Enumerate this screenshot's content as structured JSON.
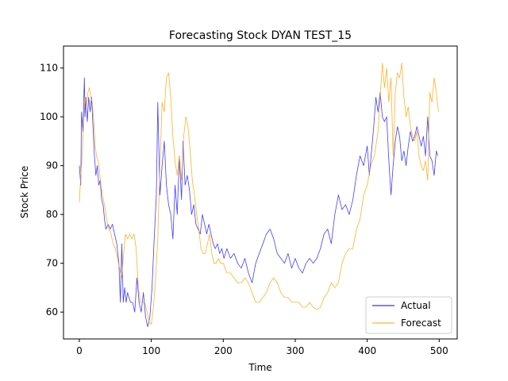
{
  "chart_data": {
    "type": "line",
    "title": "Forecasting Stock DYAN TEST_15",
    "xlabel": "Time",
    "ylabel": "Stock Price",
    "xlim": [
      -22,
      525
    ],
    "ylim": [
      54.5,
      114.5
    ],
    "xticks": [
      0,
      100,
      200,
      300,
      400,
      500
    ],
    "yticks": [
      60,
      70,
      80,
      90,
      100,
      110
    ],
    "grid": false,
    "legend_position": "lower-right",
    "series": [
      {
        "name": "Actual",
        "color": "#0000ff",
        "points": [
          [
            0,
            90
          ],
          [
            2,
            86
          ],
          [
            3,
            101
          ],
          [
            5,
            97
          ],
          [
            7,
            108
          ],
          [
            8,
            100
          ],
          [
            9,
            104
          ],
          [
            11,
            99
          ],
          [
            13,
            104
          ],
          [
            15,
            101
          ],
          [
            17,
            104
          ],
          [
            19,
            98
          ],
          [
            21,
            92
          ],
          [
            23,
            88
          ],
          [
            25,
            90
          ],
          [
            27,
            86
          ],
          [
            29,
            87
          ],
          [
            31,
            83
          ],
          [
            33,
            82
          ],
          [
            35,
            79
          ],
          [
            37,
            77
          ],
          [
            40,
            78
          ],
          [
            43,
            77
          ],
          [
            46,
            78
          ],
          [
            49,
            76
          ],
          [
            52,
            74
          ],
          [
            55,
            70
          ],
          [
            57,
            62
          ],
          [
            59,
            74
          ],
          [
            61,
            62
          ],
          [
            63,
            65
          ],
          [
            65,
            62
          ],
          [
            67,
            64
          ],
          [
            69,
            63
          ],
          [
            71,
            62
          ],
          [
            74,
            62
          ],
          [
            77,
            60
          ],
          [
            80,
            67
          ],
          [
            83,
            62
          ],
          [
            86,
            60
          ],
          [
            89,
            64
          ],
          [
            92,
            59
          ],
          [
            95,
            57
          ],
          [
            98,
            59
          ],
          [
            101,
            65
          ],
          [
            104,
            75
          ],
          [
            107,
            84
          ],
          [
            109,
            103
          ],
          [
            112,
            84
          ],
          [
            115,
            90
          ],
          [
            118,
            95
          ],
          [
            121,
            86
          ],
          [
            124,
            82
          ],
          [
            127,
            80
          ],
          [
            130,
            75
          ],
          [
            133,
            86
          ],
          [
            136,
            80
          ],
          [
            139,
            92
          ],
          [
            142,
            83
          ],
          [
            144,
            95
          ],
          [
            147,
            86
          ],
          [
            150,
            88
          ],
          [
            153,
            85
          ],
          [
            156,
            80
          ],
          [
            159,
            82
          ],
          [
            162,
            78
          ],
          [
            165,
            77
          ],
          [
            168,
            76
          ],
          [
            171,
            80
          ],
          [
            174,
            78
          ],
          [
            177,
            76
          ],
          [
            180,
            78
          ],
          [
            183,
            76
          ],
          [
            186,
            74
          ],
          [
            189,
            73
          ],
          [
            192,
            74
          ],
          [
            195,
            72
          ],
          [
            198,
            73
          ],
          [
            201,
            71
          ],
          [
            205,
            73
          ],
          [
            210,
            71
          ],
          [
            215,
            72
          ],
          [
            220,
            70
          ],
          [
            225,
            69
          ],
          [
            230,
            71
          ],
          [
            235,
            68
          ],
          [
            240,
            66
          ],
          [
            245,
            70
          ],
          [
            250,
            72
          ],
          [
            255,
            74
          ],
          [
            260,
            76
          ],
          [
            265,
            77
          ],
          [
            270,
            75
          ],
          [
            275,
            72
          ],
          [
            280,
            71
          ],
          [
            285,
            70
          ],
          [
            290,
            72
          ],
          [
            295,
            69
          ],
          [
            300,
            71
          ],
          [
            305,
            69
          ],
          [
            310,
            68
          ],
          [
            315,
            70
          ],
          [
            320,
            71
          ],
          [
            325,
            70
          ],
          [
            330,
            71
          ],
          [
            335,
            73
          ],
          [
            340,
            76
          ],
          [
            345,
            77
          ],
          [
            350,
            74
          ],
          [
            355,
            80
          ],
          [
            360,
            84
          ],
          [
            365,
            81
          ],
          [
            370,
            82
          ],
          [
            375,
            80
          ],
          [
            380,
            83
          ],
          [
            385,
            88
          ],
          [
            390,
            92
          ],
          [
            395,
            90
          ],
          [
            400,
            94
          ],
          [
            403,
            88
          ],
          [
            406,
            93
          ],
          [
            409,
            98
          ],
          [
            412,
            104
          ],
          [
            415,
            101
          ],
          [
            418,
            105
          ],
          [
            421,
            100
          ],
          [
            424,
            99
          ],
          [
            427,
            100
          ],
          [
            430,
            91
          ],
          [
            433,
            84
          ],
          [
            436,
            90
          ],
          [
            439,
            95
          ],
          [
            442,
            98
          ],
          [
            445,
            96
          ],
          [
            448,
            91
          ],
          [
            451,
            93
          ],
          [
            454,
            90
          ],
          [
            457,
            94
          ],
          [
            460,
            97
          ],
          [
            463,
            95
          ],
          [
            466,
            96
          ],
          [
            469,
            98
          ],
          [
            472,
            96
          ],
          [
            475,
            94
          ],
          [
            478,
            96
          ],
          [
            481,
            92
          ],
          [
            484,
            100
          ],
          [
            487,
            92
          ],
          [
            490,
            91
          ],
          [
            493,
            88
          ],
          [
            496,
            93
          ],
          [
            498,
            92
          ]
        ]
      },
      {
        "name": "Forecast",
        "color": "#ffa500",
        "points": [
          [
            0,
            82.5
          ],
          [
            2,
            88
          ],
          [
            4,
            92
          ],
          [
            6,
            99
          ],
          [
            8,
            104
          ],
          [
            10,
            102
          ],
          [
            12,
            105
          ],
          [
            14,
            106
          ],
          [
            16,
            104
          ],
          [
            18,
            103
          ],
          [
            20,
            99
          ],
          [
            22,
            94
          ],
          [
            24,
            92
          ],
          [
            26,
            91
          ],
          [
            28,
            89
          ],
          [
            30,
            86
          ],
          [
            32,
            84
          ],
          [
            35,
            82
          ],
          [
            38,
            79
          ],
          [
            41,
            77
          ],
          [
            44,
            76
          ],
          [
            47,
            74
          ],
          [
            50,
            73
          ],
          [
            53,
            71
          ],
          [
            56,
            69
          ],
          [
            59,
            67
          ],
          [
            61,
            71
          ],
          [
            64,
            76
          ],
          [
            67,
            75
          ],
          [
            70,
            76
          ],
          [
            73,
            75
          ],
          [
            76,
            76
          ],
          [
            79,
            73
          ],
          [
            82,
            65
          ],
          [
            85,
            62
          ],
          [
            88,
            62
          ],
          [
            91,
            62
          ],
          [
            94,
            60
          ],
          [
            97,
            58
          ],
          [
            100,
            57.5
          ],
          [
            103,
            61
          ],
          [
            106,
            67
          ],
          [
            109,
            75
          ],
          [
            112,
            90
          ],
          [
            115,
            103
          ],
          [
            118,
            101
          ],
          [
            121,
            108
          ],
          [
            124,
            109
          ],
          [
            127,
            104
          ],
          [
            130,
            96
          ],
          [
            133,
            91
          ],
          [
            136,
            88
          ],
          [
            139,
            92
          ],
          [
            142,
            87
          ],
          [
            145,
            96
          ],
          [
            148,
            100
          ],
          [
            151,
            98
          ],
          [
            154,
            93
          ],
          [
            157,
            87
          ],
          [
            160,
            84
          ],
          [
            163,
            80
          ],
          [
            166,
            77
          ],
          [
            169,
            73
          ],
          [
            172,
            72
          ],
          [
            175,
            72
          ],
          [
            178,
            74
          ],
          [
            181,
            76
          ],
          [
            184,
            72
          ],
          [
            187,
            70
          ],
          [
            190,
            70
          ],
          [
            193,
            71
          ],
          [
            196,
            70
          ],
          [
            200,
            70
          ],
          [
            205,
            68
          ],
          [
            210,
            68
          ],
          [
            215,
            67
          ],
          [
            220,
            66
          ],
          [
            225,
            66
          ],
          [
            230,
            67
          ],
          [
            235,
            66
          ],
          [
            240,
            64
          ],
          [
            245,
            62
          ],
          [
            250,
            62
          ],
          [
            255,
            63
          ],
          [
            260,
            64
          ],
          [
            265,
            66
          ],
          [
            270,
            67
          ],
          [
            275,
            66
          ],
          [
            280,
            64
          ],
          [
            285,
            63
          ],
          [
            290,
            63
          ],
          [
            295,
            62
          ],
          [
            300,
            62
          ],
          [
            305,
            62
          ],
          [
            310,
            61
          ],
          [
            315,
            61
          ],
          [
            320,
            62
          ],
          [
            325,
            61
          ],
          [
            330,
            60.5
          ],
          [
            335,
            61
          ],
          [
            340,
            63
          ],
          [
            345,
            64
          ],
          [
            350,
            66
          ],
          [
            355,
            65
          ],
          [
            360,
            66
          ],
          [
            365,
            70
          ],
          [
            370,
            72
          ],
          [
            375,
            73
          ],
          [
            380,
            73
          ],
          [
            385,
            77
          ],
          [
            390,
            79
          ],
          [
            395,
            84
          ],
          [
            400,
            86
          ],
          [
            405,
            90
          ],
          [
            410,
            92
          ],
          [
            415,
            97
          ],
          [
            418,
            104
          ],
          [
            421,
            111
          ],
          [
            424,
            106
          ],
          [
            427,
            110
          ],
          [
            430,
            103
          ],
          [
            433,
            108
          ],
          [
            436,
            92
          ],
          [
            439,
            105
          ],
          [
            442,
            109
          ],
          [
            445,
            108
          ],
          [
            448,
            111
          ],
          [
            451,
            104
          ],
          [
            454,
            100
          ],
          [
            457,
            102
          ],
          [
            460,
            98
          ],
          [
            463,
            96
          ],
          [
            466,
            95
          ],
          [
            469,
            97
          ],
          [
            472,
            92
          ],
          [
            475,
            90
          ],
          [
            478,
            89
          ],
          [
            481,
            91
          ],
          [
            484,
            87
          ],
          [
            487,
            105
          ],
          [
            490,
            103
          ],
          [
            493,
            108
          ],
          [
            496,
            105
          ],
          [
            499,
            101
          ]
        ]
      }
    ]
  }
}
